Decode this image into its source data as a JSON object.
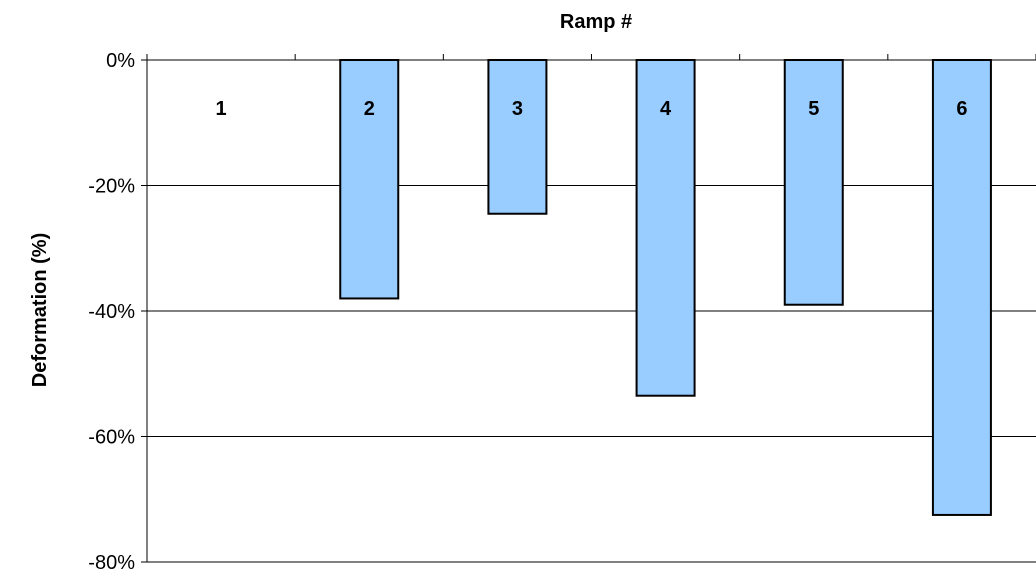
{
  "chart_data": {
    "type": "bar",
    "title": "",
    "xlabel": "Ramp #",
    "ylabel": "Deformation (%)",
    "categories": [
      "1",
      "2",
      "3",
      "4",
      "5",
      "6"
    ],
    "values": [
      0,
      -38,
      -24.5,
      -53.5,
      -39,
      -72.5
    ],
    "ylim": [
      -80,
      0
    ],
    "yticks": [
      0,
      -20,
      -40,
      -60,
      -80
    ],
    "ytick_labels": [
      "0%",
      "-20%",
      "-40%",
      "-60%",
      "-80%"
    ],
    "x_axis_position": "top",
    "grid": true,
    "legend": false,
    "bar_color": "#99CCFF",
    "bar_edge_color": "#000000"
  }
}
